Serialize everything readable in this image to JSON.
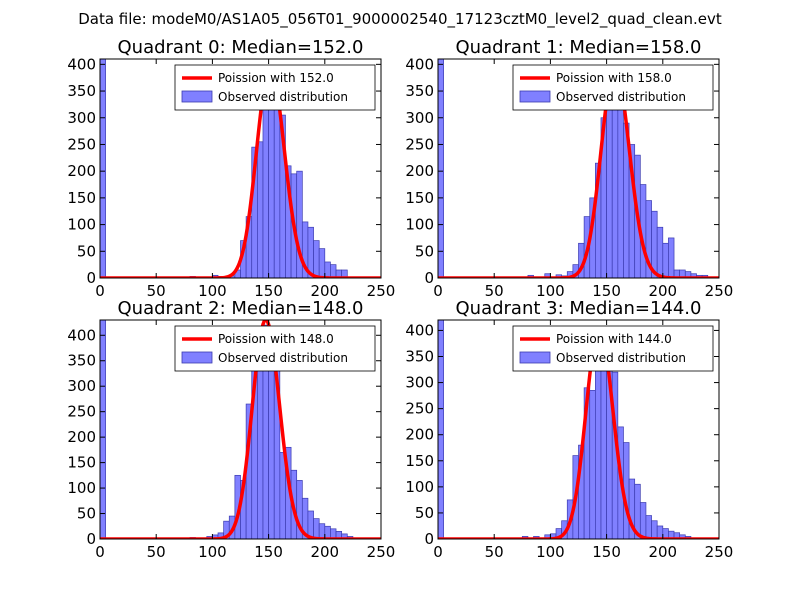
{
  "figure": {
    "suptitle": "Data file: modeM0/AS1A05_056T01_9000002540_17123cztM0_level2_quad_clean.evt"
  },
  "colors": {
    "bar_fill": "#8080ff",
    "bar_edge": "#3b3bb0",
    "curve": "#ff0000"
  },
  "chart_data": [
    {
      "type": "bar",
      "title": "Quadrant 0: Median=152.0",
      "xlim": [
        0,
        250
      ],
      "ylim": [
        0,
        410
      ],
      "xticks": [
        "0",
        "50",
        "100",
        "150",
        "200",
        "250"
      ],
      "yticks": [
        "0",
        "50",
        "100",
        "150",
        "200",
        "250",
        "300",
        "350",
        "400"
      ],
      "bin_width": 5,
      "hist": [
        [
          0,
          410
        ],
        [
          80,
          3
        ],
        [
          90,
          2
        ],
        [
          100,
          5
        ],
        [
          105,
          3
        ],
        [
          115,
          4
        ],
        [
          120,
          15
        ],
        [
          125,
          70
        ],
        [
          130,
          115
        ],
        [
          135,
          245
        ],
        [
          140,
          255
        ],
        [
          145,
          325
        ],
        [
          150,
          375
        ],
        [
          155,
          345
        ],
        [
          160,
          305
        ],
        [
          165,
          210
        ],
        [
          170,
          195
        ],
        [
          175,
          200
        ],
        [
          180,
          105
        ],
        [
          185,
          95
        ],
        [
          190,
          70
        ],
        [
          195,
          55
        ],
        [
          200,
          30
        ],
        [
          205,
          25
        ],
        [
          210,
          15
        ],
        [
          215,
          15
        ]
      ],
      "legend": [
        "Poission with 152.0",
        "Observed distribution"
      ],
      "poisson_mu": 152,
      "poisson_peak": 395
    },
    {
      "type": "bar",
      "title": "Quadrant 1: Median=158.0",
      "xlim": [
        0,
        250
      ],
      "ylim": [
        0,
        410
      ],
      "xticks": [
        "0",
        "50",
        "100",
        "150",
        "200",
        "250"
      ],
      "yticks": [
        "0",
        "50",
        "100",
        "150",
        "200",
        "250",
        "300",
        "350",
        "400"
      ],
      "bin_width": 5,
      "hist": [
        [
          0,
          410
        ],
        [
          80,
          5
        ],
        [
          95,
          8
        ],
        [
          105,
          6
        ],
        [
          110,
          4
        ],
        [
          115,
          12
        ],
        [
          120,
          25
        ],
        [
          125,
          65
        ],
        [
          130,
          115
        ],
        [
          135,
          150
        ],
        [
          140,
          215
        ],
        [
          145,
          300
        ],
        [
          150,
          330
        ],
        [
          155,
          360
        ],
        [
          160,
          330
        ],
        [
          165,
          290
        ],
        [
          170,
          250
        ],
        [
          175,
          230
        ],
        [
          180,
          175
        ],
        [
          185,
          145
        ],
        [
          190,
          125
        ],
        [
          195,
          95
        ],
        [
          200,
          65
        ],
        [
          205,
          75
        ],
        [
          210,
          15
        ],
        [
          215,
          15
        ],
        [
          220,
          12
        ],
        [
          225,
          8
        ],
        [
          230,
          5
        ],
        [
          235,
          5
        ]
      ],
      "legend": [
        "Poission with 158.0",
        "Observed distribution"
      ],
      "poisson_mu": 158,
      "poisson_peak": 395
    },
    {
      "type": "bar",
      "title": "Quadrant 2: Median=148.0",
      "xlim": [
        0,
        250
      ],
      "ylim": [
        0,
        430
      ],
      "xticks": [
        "0",
        "50",
        "100",
        "150",
        "200",
        "250"
      ],
      "yticks": [
        "0",
        "50",
        "100",
        "150",
        "200",
        "250",
        "300",
        "350",
        "400"
      ],
      "bin_width": 5,
      "hist": [
        [
          0,
          430
        ],
        [
          80,
          3
        ],
        [
          90,
          2
        ],
        [
          95,
          5
        ],
        [
          100,
          8
        ],
        [
          105,
          12
        ],
        [
          110,
          35
        ],
        [
          115,
          45
        ],
        [
          120,
          125
        ],
        [
          125,
          115
        ],
        [
          130,
          265
        ],
        [
          135,
          335
        ],
        [
          140,
          360
        ],
        [
          145,
          420
        ],
        [
          150,
          410
        ],
        [
          155,
          345
        ],
        [
          160,
          170
        ],
        [
          165,
          180
        ],
        [
          170,
          135
        ],
        [
          175,
          115
        ],
        [
          180,
          80
        ],
        [
          185,
          55
        ],
        [
          190,
          40
        ],
        [
          195,
          30
        ],
        [
          200,
          25
        ],
        [
          205,
          20
        ],
        [
          210,
          15
        ],
        [
          215,
          10
        ],
        [
          220,
          5
        ]
      ],
      "legend": [
        "Poission with 148.0",
        "Observed distribution"
      ],
      "poisson_mu": 148,
      "poisson_peak": 430
    },
    {
      "type": "bar",
      "title": "Quadrant 3: Median=144.0",
      "xlim": [
        0,
        250
      ],
      "ylim": [
        0,
        420
      ],
      "xticks": [
        "0",
        "50",
        "100",
        "150",
        "200",
        "250"
      ],
      "yticks": [
        "0",
        "50",
        "100",
        "150",
        "200",
        "250",
        "300",
        "350",
        "400"
      ],
      "bin_width": 5,
      "hist": [
        [
          0,
          420
        ],
        [
          75,
          5
        ],
        [
          85,
          5
        ],
        [
          95,
          8
        ],
        [
          100,
          10
        ],
        [
          105,
          20
        ],
        [
          110,
          35
        ],
        [
          115,
          75
        ],
        [
          120,
          160
        ],
        [
          125,
          180
        ],
        [
          130,
          290
        ],
        [
          135,
          285
        ],
        [
          140,
          365
        ],
        [
          145,
          385
        ],
        [
          150,
          345
        ],
        [
          155,
          320
        ],
        [
          160,
          215
        ],
        [
          165,
          185
        ],
        [
          170,
          115
        ],
        [
          175,
          105
        ],
        [
          180,
          70
        ],
        [
          185,
          45
        ],
        [
          190,
          35
        ],
        [
          195,
          25
        ],
        [
          200,
          20
        ],
        [
          205,
          15
        ],
        [
          210,
          12
        ],
        [
          215,
          8
        ],
        [
          220,
          5
        ]
      ],
      "legend": [
        "Poission with 144.0",
        "Observed distribution"
      ],
      "poisson_mu": 144,
      "poisson_peak": 405
    }
  ]
}
